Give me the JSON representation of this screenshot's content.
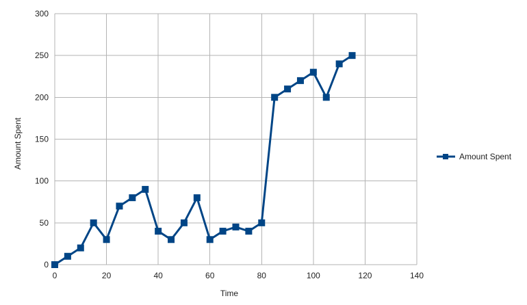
{
  "chart_data": {
    "type": "line",
    "title": "",
    "xlabel": "Time",
    "ylabel": "Amount Spent",
    "xlim": [
      0,
      140
    ],
    "ylim": [
      0,
      300
    ],
    "x_ticks": [
      0,
      20,
      40,
      60,
      80,
      100,
      120,
      140
    ],
    "y_ticks": [
      0,
      50,
      100,
      150,
      200,
      250,
      300
    ],
    "grid": true,
    "legend_position": "right",
    "series": [
      {
        "name": "Amount Spent",
        "color": "#004586",
        "marker": "square",
        "x": [
          0,
          5,
          10,
          15,
          20,
          25,
          30,
          35,
          40,
          45,
          50,
          55,
          60,
          65,
          70,
          75,
          80,
          85,
          90,
          95,
          100,
          105,
          110,
          115
        ],
        "y": [
          0,
          10,
          20,
          50,
          30,
          70,
          80,
          90,
          40,
          30,
          50,
          80,
          30,
          40,
          45,
          40,
          50,
          200,
          210,
          220,
          230,
          200,
          240,
          250
        ]
      }
    ]
  }
}
